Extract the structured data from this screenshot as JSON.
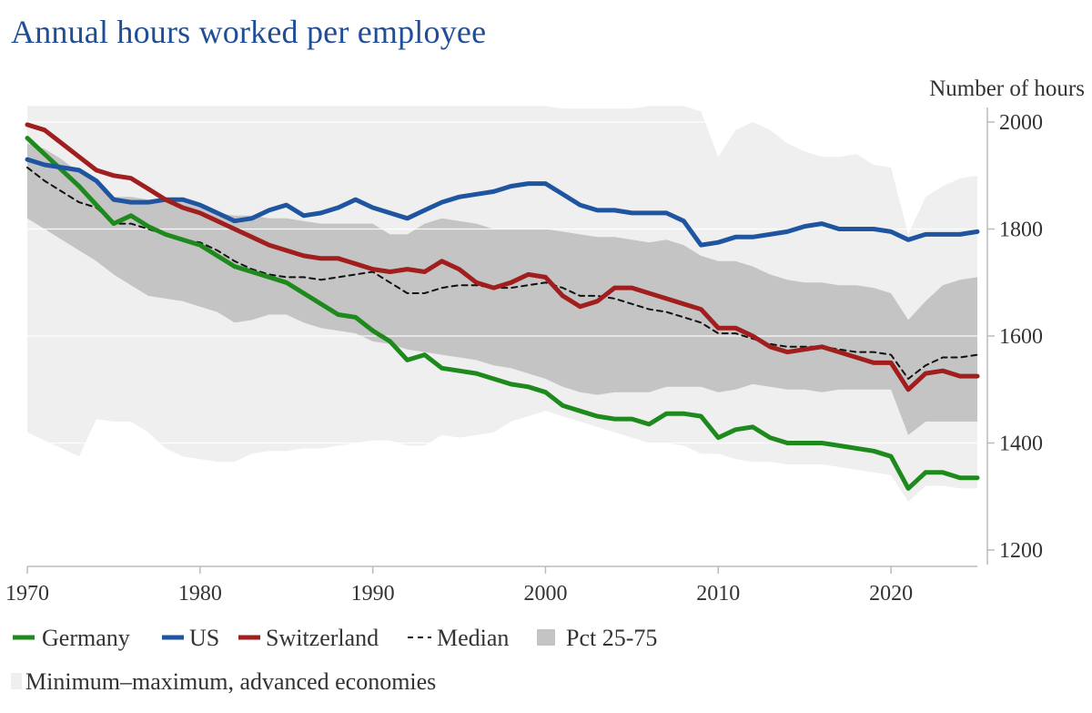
{
  "title": "Annual hours worked per employee",
  "chart_data": {
    "type": "line",
    "title": "Annual hours worked per employee",
    "ylabel": "Number of hours",
    "xlabel": "",
    "xlim": [
      1970,
      2025
    ],
    "ylim": [
      1200,
      2000
    ],
    "xticks": [
      1970,
      1980,
      1990,
      2000,
      2010,
      2020
    ],
    "yticks": [
      1200,
      1400,
      1600,
      1800,
      2000
    ],
    "grid": true,
    "legend_position": "bottom",
    "x": [
      1970,
      1971,
      1972,
      1973,
      1974,
      1975,
      1976,
      1977,
      1978,
      1979,
      1980,
      1981,
      1982,
      1983,
      1984,
      1985,
      1986,
      1987,
      1988,
      1989,
      1990,
      1991,
      1992,
      1993,
      1994,
      1995,
      1996,
      1997,
      1998,
      1999,
      2000,
      2001,
      2002,
      2003,
      2004,
      2005,
      2006,
      2007,
      2008,
      2009,
      2010,
      2011,
      2012,
      2013,
      2014,
      2015,
      2016,
      2017,
      2018,
      2019,
      2020,
      2021,
      2022,
      2023,
      2024,
      2025
    ],
    "series": [
      {
        "name": "Germany",
        "type": "line",
        "color": "#1e8a1e",
        "values": [
          1970,
          1940,
          1910,
          1880,
          1845,
          1810,
          1825,
          1805,
          1790,
          1780,
          1770,
          1750,
          1730,
          1720,
          1710,
          1700,
          1680,
          1660,
          1640,
          1635,
          1610,
          1590,
          1555,
          1565,
          1540,
          1535,
          1530,
          1520,
          1510,
          1505,
          1495,
          1470,
          1460,
          1450,
          1445,
          1445,
          1435,
          1455,
          1455,
          1450,
          1410,
          1425,
          1430,
          1410,
          1400,
          1400,
          1400,
          1395,
          1390,
          1385,
          1375,
          1315,
          1345,
          1345,
          1335,
          1335
        ]
      },
      {
        "name": "US",
        "type": "line",
        "color": "#1f55a0",
        "values": [
          1930,
          1920,
          1915,
          1910,
          1890,
          1855,
          1850,
          1850,
          1855,
          1855,
          1845,
          1830,
          1815,
          1820,
          1835,
          1845,
          1825,
          1830,
          1840,
          1855,
          1840,
          1830,
          1820,
          1835,
          1850,
          1860,
          1865,
          1870,
          1880,
          1885,
          1885,
          1865,
          1845,
          1835,
          1835,
          1830,
          1830,
          1830,
          1815,
          1770,
          1775,
          1785,
          1785,
          1790,
          1795,
          1805,
          1810,
          1800,
          1800,
          1800,
          1795,
          1780,
          1790,
          1790,
          1790,
          1795
        ]
      },
      {
        "name": "Switzerland",
        "type": "line",
        "color": "#a01e1e",
        "values": [
          1995,
          1985,
          1960,
          1935,
          1910,
          1900,
          1895,
          1875,
          1855,
          1840,
          1830,
          1815,
          1800,
          1785,
          1770,
          1760,
          1750,
          1745,
          1745,
          1735,
          1725,
          1720,
          1725,
          1720,
          1740,
          1725,
          1700,
          1690,
          1700,
          1715,
          1710,
          1675,
          1655,
          1665,
          1690,
          1690,
          1680,
          1670,
          1660,
          1650,
          1615,
          1615,
          1600,
          1580,
          1570,
          1575,
          1580,
          1570,
          1560,
          1550,
          1550,
          1500,
          1530,
          1535,
          1525,
          1525
        ]
      },
      {
        "name": "Median",
        "type": "dashed",
        "color": "#111111",
        "values": [
          1915,
          1890,
          1870,
          1850,
          1840,
          1810,
          1810,
          1800,
          1790,
          1780,
          1775,
          1760,
          1740,
          1725,
          1715,
          1710,
          1710,
          1705,
          1710,
          1715,
          1720,
          1700,
          1680,
          1680,
          1690,
          1695,
          1695,
          1690,
          1690,
          1695,
          1700,
          1690,
          1675,
          1675,
          1670,
          1660,
          1650,
          1645,
          1635,
          1625,
          1605,
          1605,
          1595,
          1585,
          1580,
          1580,
          1580,
          1575,
          1570,
          1570,
          1565,
          1520,
          1545,
          1560,
          1560,
          1565
        ]
      },
      {
        "name": "Pct 25-75",
        "type": "band",
        "color": "#c4c4c4",
        "low": [
          1820,
          1800,
          1780,
          1760,
          1740,
          1715,
          1695,
          1675,
          1670,
          1665,
          1655,
          1645,
          1625,
          1630,
          1640,
          1640,
          1625,
          1615,
          1610,
          1605,
          1590,
          1585,
          1575,
          1570,
          1565,
          1560,
          1555,
          1545,
          1540,
          1530,
          1520,
          1505,
          1495,
          1490,
          1495,
          1495,
          1495,
          1505,
          1505,
          1505,
          1495,
          1500,
          1510,
          1505,
          1500,
          1500,
          1495,
          1500,
          1500,
          1500,
          1500,
          1415,
          1440,
          1440,
          1440,
          1440
        ],
        "high": [
          1960,
          1950,
          1930,
          1905,
          1885,
          1860,
          1860,
          1855,
          1850,
          1850,
          1840,
          1830,
          1825,
          1825,
          1820,
          1820,
          1815,
          1810,
          1810,
          1810,
          1810,
          1790,
          1790,
          1810,
          1820,
          1815,
          1810,
          1800,
          1800,
          1800,
          1800,
          1795,
          1790,
          1785,
          1785,
          1780,
          1775,
          1780,
          1770,
          1750,
          1740,
          1740,
          1730,
          1715,
          1705,
          1700,
          1700,
          1695,
          1695,
          1690,
          1680,
          1630,
          1665,
          1695,
          1705,
          1710
        ]
      },
      {
        "name": "Minimum–maximum, advanced economies",
        "type": "band",
        "color": "#efefef",
        "low": [
          1420,
          1405,
          1390,
          1375,
          1445,
          1440,
          1440,
          1420,
          1390,
          1375,
          1370,
          1365,
          1365,
          1380,
          1385,
          1385,
          1390,
          1390,
          1395,
          1400,
          1405,
          1405,
          1395,
          1395,
          1415,
          1410,
          1415,
          1420,
          1440,
          1450,
          1460,
          1450,
          1440,
          1430,
          1420,
          1410,
          1400,
          1400,
          1395,
          1380,
          1380,
          1370,
          1365,
          1365,
          1360,
          1360,
          1360,
          1355,
          1350,
          1345,
          1340,
          1290,
          1320,
          1320,
          1315,
          1315
        ],
        "high": [
          2030,
          2030,
          2030,
          2030,
          2030,
          2030,
          2030,
          2030,
          2030,
          2030,
          2030,
          2030,
          2030,
          2030,
          2030,
          2030,
          2030,
          2030,
          2030,
          2030,
          2030,
          2030,
          2030,
          2030,
          2030,
          2030,
          2030,
          2030,
          2030,
          2030,
          2030,
          2025,
          2025,
          2025,
          2025,
          2025,
          2030,
          2030,
          2030,
          2020,
          1935,
          1985,
          2000,
          1985,
          1960,
          1945,
          1935,
          1935,
          1940,
          1920,
          1915,
          1790,
          1860,
          1880,
          1895,
          1900
        ]
      }
    ]
  },
  "legend": [
    {
      "label": "Germany",
      "kind": "line",
      "color": "#1e8a1e"
    },
    {
      "label": "US",
      "kind": "line",
      "color": "#1f55a0"
    },
    {
      "label": "Switzerland",
      "kind": "line",
      "color": "#a01e1e"
    },
    {
      "label": "Median",
      "kind": "dashed",
      "color": "#111111"
    },
    {
      "label": "Pct 25-75",
      "kind": "box",
      "color": "#c4c4c4"
    },
    {
      "label": "Minimum–maximum, advanced economies",
      "kind": "box",
      "color": "#efefef"
    }
  ]
}
